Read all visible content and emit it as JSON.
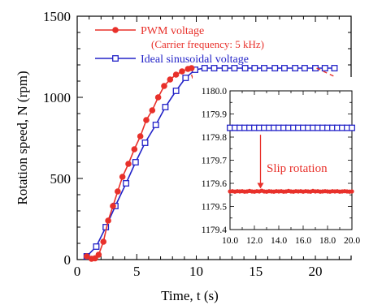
{
  "chart_data": [
    {
      "type": "line",
      "xlabel": "Time, t (s)",
      "ylabel": "Rotation speed, N (rpm)",
      "xlim": [
        0,
        23
      ],
      "ylim": [
        0,
        1500
      ],
      "xticks": [
        0,
        5,
        10,
        15,
        20
      ],
      "yticks": [
        0,
        500,
        1000,
        1500
      ],
      "grid": false,
      "legend_position": "top-center",
      "series": [
        {
          "name": "PWM voltage",
          "subtitle": "(Carrier frequency: 5 kHz)",
          "color": "#e8302a",
          "marker": "filled-circle",
          "x": [
            0.8,
            1.2,
            1.5,
            1.8,
            2.2,
            2.6,
            3.0,
            3.4,
            3.8,
            4.3,
            4.8,
            5.3,
            5.8,
            6.3,
            6.8,
            7.3,
            7.8,
            8.3,
            8.8,
            9.3,
            9.6
          ],
          "y": [
            20,
            5,
            8,
            30,
            110,
            240,
            330,
            420,
            510,
            590,
            680,
            760,
            860,
            920,
            1000,
            1070,
            1110,
            1140,
            1160,
            1175,
            1180
          ]
        },
        {
          "name": "Ideal sinusoidal voltage",
          "color": "#2323c8",
          "marker": "open-square",
          "x": [
            0.8,
            1.6,
            2.4,
            3.2,
            4.1,
            4.9,
            5.7,
            6.6,
            7.4,
            8.3,
            9.1,
            9.9,
            10.7,
            11.5,
            12.4,
            13.2,
            14.1,
            14.9,
            15.7,
            16.6,
            17.4,
            18.3,
            19.1,
            20.0,
            20.8,
            21.6
          ],
          "y": [
            20,
            80,
            200,
            330,
            470,
            600,
            720,
            830,
            940,
            1040,
            1120,
            1170,
            1180,
            1180,
            1180,
            1180,
            1180,
            1180,
            1180,
            1180,
            1180,
            1180,
            1180,
            1180,
            1180,
            1180
          ]
        }
      ]
    },
    {
      "type": "line",
      "xlim": [
        10.0,
        20.0
      ],
      "ylim": [
        1179.4,
        1180.0
      ],
      "xticks": [
        "10.0",
        "12.0",
        "14.0",
        "16.0",
        "18.0",
        "20.0"
      ],
      "yticks": [
        "1179.4",
        "1179.5",
        "1179.6",
        "1179.7",
        "1179.8",
        "1179.9",
        "1180.0"
      ],
      "annotation": "Slip rotation",
      "annotation_arrow": {
        "x": 12.5,
        "from_y": 1179.81,
        "to_y": 1179.57
      },
      "series": [
        {
          "ref": "Ideal sinusoidal voltage",
          "color": "#2323c8",
          "marker": "open-square",
          "x": [
            10.0,
            10.4,
            10.8,
            11.2,
            11.6,
            12.0,
            12.4,
            12.8,
            13.2,
            13.6,
            14.0,
            14.4,
            14.8,
            15.2,
            15.6,
            16.0,
            16.4,
            16.8,
            17.2,
            17.6,
            18.0,
            18.4,
            18.8,
            19.2,
            19.6,
            20.0
          ],
          "y": [
            1179.84,
            1179.84,
            1179.84,
            1179.84,
            1179.84,
            1179.84,
            1179.84,
            1179.84,
            1179.84,
            1179.84,
            1179.84,
            1179.84,
            1179.84,
            1179.84,
            1179.84,
            1179.84,
            1179.84,
            1179.84,
            1179.84,
            1179.84,
            1179.84,
            1179.84,
            1179.84,
            1179.84,
            1179.84,
            1179.84
          ]
        },
        {
          "ref": "PWM voltage",
          "color": "#e8302a",
          "marker": "filled-circle",
          "x": [
            10.0,
            10.2,
            10.4,
            10.6,
            10.8,
            11.0,
            11.2,
            11.4,
            11.6,
            11.8,
            12.0,
            12.2,
            12.4,
            12.6,
            12.8,
            13.0,
            13.2,
            13.4,
            13.6,
            13.8,
            14.0,
            14.2,
            14.4,
            14.6,
            14.8,
            15.0,
            15.2,
            15.4,
            15.6,
            15.8,
            16.0,
            16.2,
            16.4,
            16.6,
            16.8,
            17.0,
            17.2,
            17.4,
            17.6,
            17.8,
            18.0,
            18.2,
            18.4,
            18.6,
            18.8,
            19.0,
            19.2,
            19.4,
            19.6,
            19.8,
            20.0
          ],
          "y": [
            1179.565,
            1179.566,
            1179.564,
            1179.566,
            1179.565,
            1179.566,
            1179.564,
            1179.565,
            1179.567,
            1179.565,
            1179.564,
            1179.566,
            1179.565,
            1179.568,
            1179.565,
            1179.564,
            1179.566,
            1179.565,
            1179.564,
            1179.566,
            1179.565,
            1179.566,
            1179.564,
            1179.565,
            1179.567,
            1179.565,
            1179.564,
            1179.566,
            1179.565,
            1179.566,
            1179.564,
            1179.566,
            1179.565,
            1179.564,
            1179.567,
            1179.565,
            1179.566,
            1179.564,
            1179.565,
            1179.566,
            1179.565,
            1179.564,
            1179.566,
            1179.565,
            1179.566,
            1179.564,
            1179.565,
            1179.566,
            1179.565,
            1179.564,
            1179.565
          ]
        }
      ]
    }
  ]
}
